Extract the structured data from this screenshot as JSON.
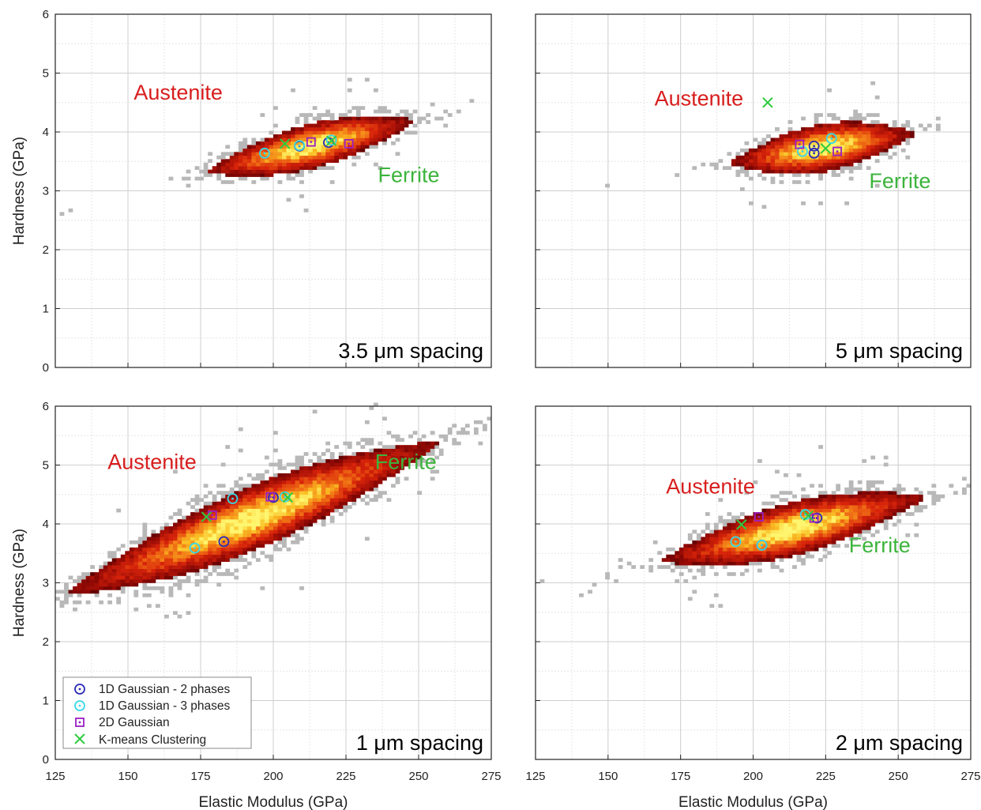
{
  "figure": {
    "colors": {
      "austenite": "#d81e1e",
      "ferrite": "#3cb43c",
      "gaussian_2": "#2a2ab8",
      "gaussian_3": "#38d8e8",
      "gaussian_2d": "#9a1fc4",
      "kmeans": "#2ecc40",
      "scatter_sparse": "#b8b8b8"
    },
    "legend": {
      "entries": [
        {
          "label": "1D Gaussian - 2 phases",
          "icon": "circle-dot-icon",
          "color": "#2a2ab8"
        },
        {
          "label": "1D Gaussian - 3 phases",
          "icon": "circle-dot-icon",
          "color": "#38d8e8"
        },
        {
          "label": "2D Gaussian",
          "icon": "square-dot-icon",
          "color": "#9a1fc4"
        },
        {
          "label": "K-means Clustering",
          "icon": "x-icon",
          "color": "#2ecc40"
        }
      ]
    }
  },
  "chart_data": [
    {
      "type": "heatmap",
      "panel": "top-left",
      "title": "",
      "annotation": "3.5 μm spacing",
      "xlabel": "",
      "ylabel": "Hardness (GPa)",
      "xlim": [
        125,
        275
      ],
      "ylim": [
        0,
        6
      ],
      "xticks": [],
      "yticks": [
        "0",
        "1",
        "2",
        "3",
        "4",
        "5",
        "6"
      ],
      "grid": true,
      "phase_labels": [
        {
          "text": "Austenite",
          "x": 152,
          "y": 4.55,
          "color": "#d81e1e"
        },
        {
          "text": "Ferrite",
          "x": 236,
          "y": 3.15,
          "color": "#3cb43c"
        }
      ],
      "density": {
        "center": [
          213,
          3.76
        ],
        "half_width": 35,
        "half_height": 0.38,
        "slope": 0.012
      },
      "markers": [
        {
          "series": "1D Gaussian - 2 phases",
          "points": [
            [
              209,
              3.76
            ],
            [
              219,
              3.82
            ]
          ]
        },
        {
          "series": "1D Gaussian - 3 phases",
          "points": [
            [
              197,
              3.64
            ],
            [
              209,
              3.77
            ],
            [
              220,
              3.86
            ]
          ]
        },
        {
          "series": "2D Gaussian",
          "points": [
            [
              213,
              3.83
            ],
            [
              226,
              3.8
            ]
          ]
        },
        {
          "series": "K-means Clustering",
          "points": [
            [
              204,
              3.8
            ],
            [
              220,
              3.85
            ]
          ]
        }
      ]
    },
    {
      "type": "heatmap",
      "panel": "top-right",
      "title": "",
      "annotation": "5 μm spacing",
      "xlabel": "",
      "ylabel": "",
      "xlim": [
        125,
        275
      ],
      "ylim": [
        0,
        6
      ],
      "xticks": [],
      "yticks": [],
      "grid": true,
      "phase_labels": [
        {
          "text": "Austenite",
          "x": 166,
          "y": 4.45,
          "color": "#d81e1e"
        },
        {
          "text": "Ferrite",
          "x": 240,
          "y": 3.05,
          "color": "#3cb43c"
        }
      ],
      "density": {
        "center": [
          224,
          3.73
        ],
        "half_width": 31,
        "half_height": 0.4,
        "slope": 0.008
      },
      "markers": [
        {
          "series": "1D Gaussian - 2 phases",
          "points": [
            [
              221,
              3.76
            ],
            [
              221,
              3.64
            ]
          ]
        },
        {
          "series": "1D Gaussian - 3 phases",
          "points": [
            [
              217,
              3.67
            ],
            [
              227,
              3.89
            ]
          ]
        },
        {
          "series": "2D Gaussian",
          "points": [
            [
              216,
              3.79
            ],
            [
              229,
              3.67
            ]
          ]
        },
        {
          "series": "K-means Clustering",
          "points": [
            [
              205,
              4.5
            ],
            [
              225,
              3.72
            ]
          ]
        }
      ]
    },
    {
      "type": "heatmap",
      "panel": "bottom-left",
      "title": "",
      "annotation": "1 μm spacing",
      "xlabel": "Elastic Modulus (GPa)",
      "ylabel": "Hardness (GPa)",
      "xlim": [
        125,
        275
      ],
      "ylim": [
        0,
        6
      ],
      "xticks": [
        "125",
        "150",
        "175",
        "200",
        "225",
        "250",
        "275"
      ],
      "yticks": [
        "0",
        "1",
        "2",
        "3",
        "4",
        "5",
        "6"
      ],
      "grid": true,
      "phase_labels": [
        {
          "text": "Austenite",
          "x": 143,
          "y": 4.93,
          "color": "#d81e1e"
        },
        {
          "text": "Ferrite",
          "x": 235,
          "y": 4.93,
          "color": "#3cb43c"
        }
      ],
      "density": {
        "center": [
          193,
          4.1
        ],
        "half_width": 62,
        "half_height": 0.55,
        "slope": 0.02
      },
      "markers": [
        {
          "series": "1D Gaussian - 2 phases",
          "points": [
            [
              183,
              3.7
            ],
            [
              200,
              4.45
            ]
          ]
        },
        {
          "series": "1D Gaussian - 3 phases",
          "points": [
            [
              173,
              3.59
            ],
            [
              186,
              4.43
            ],
            [
              204,
              4.46
            ]
          ]
        },
        {
          "series": "2D Gaussian",
          "points": [
            [
              179,
              4.15
            ],
            [
              199,
              4.46
            ]
          ]
        },
        {
          "series": "K-means Clustering",
          "points": [
            [
              177,
              4.12
            ],
            [
              205,
              4.45
            ]
          ]
        }
      ]
    },
    {
      "type": "heatmap",
      "panel": "bottom-right",
      "title": "",
      "annotation": "2 μm spacing",
      "xlabel": "Elastic Modulus (GPa)",
      "ylabel": "",
      "xlim": [
        125,
        275
      ],
      "ylim": [
        0,
        6
      ],
      "xticks": [
        "125",
        "150",
        "175",
        "200",
        "225",
        "250",
        "275"
      ],
      "yticks": [],
      "grid": true,
      "phase_labels": [
        {
          "text": "Austenite",
          "x": 170,
          "y": 4.52,
          "color": "#d81e1e"
        },
        {
          "text": "Ferrite",
          "x": 233,
          "y": 3.52,
          "color": "#3cb43c"
        }
      ],
      "density": {
        "center": [
          214,
          3.92
        ],
        "half_width": 44,
        "half_height": 0.45,
        "slope": 0.012
      },
      "markers": [
        {
          "series": "1D Gaussian - 2 phases",
          "points": [
            [
              203,
              3.64
            ],
            [
              222,
              4.1
            ]
          ]
        },
        {
          "series": "1D Gaussian - 3 phases",
          "points": [
            [
              194,
              3.7
            ],
            [
              203,
              3.64
            ],
            [
              218,
              4.16
            ]
          ]
        },
        {
          "series": "2D Gaussian",
          "points": [
            [
              202,
              4.12
            ],
            [
              221,
              4.1
            ]
          ]
        },
        {
          "series": "K-means Clustering",
          "points": [
            [
              196,
              3.99
            ],
            [
              219,
              4.14
            ]
          ]
        }
      ]
    }
  ]
}
